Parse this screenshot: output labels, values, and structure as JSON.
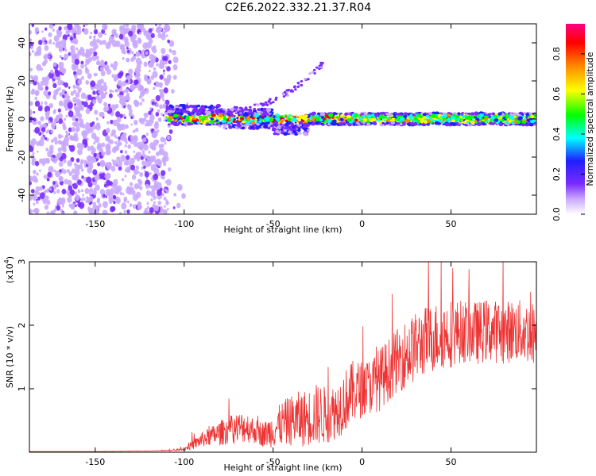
{
  "title": "C2E6.2022.332.21.37.R04",
  "spectrogram": {
    "xlabel": "Height of straight line (km)",
    "ylabel": "Frequency (Hz)",
    "xlim": [
      -187,
      98
    ],
    "ylim": [
      -50,
      50
    ],
    "xticks": [
      -150,
      -100,
      -50,
      0,
      50
    ],
    "yticks": [
      -40,
      -20,
      0,
      20,
      40
    ]
  },
  "colorbar": {
    "label": "Normalized spectral amplitude",
    "ticks": [
      0.0,
      0.2,
      0.4,
      0.6,
      0.8
    ],
    "tick_labels": [
      "0.0",
      "0.2",
      "0.4",
      "0.6",
      "0.8"
    ],
    "range": [
      0.0,
      0.95
    ],
    "colors": [
      "#ffffff",
      "#c9a8ff",
      "#7a2bff",
      "#1f1fff",
      "#00ffff",
      "#00ff00",
      "#ffff00",
      "#ff8800",
      "#ff0000",
      "#ff0080"
    ]
  },
  "chart_data": {
    "type": "line",
    "title": "C2E6.2022.332.21.37.R04",
    "xlabel": "Height of straight line (km)",
    "ylabel": "SNR (10 * v/v)",
    "y_multiplier_label": "(x10",
    "y_multiplier_exp": "4",
    "y_multiplier_close": ")",
    "xlim": [
      -187,
      98
    ],
    "ylim": [
      0,
      3
    ],
    "xticks": [
      -150,
      -100,
      -50,
      0,
      50
    ],
    "yticks": [
      1,
      2,
      3
    ],
    "series": [
      {
        "name": "SNR",
        "color": "#ee3333",
        "x": [
          -187,
          -150,
          -120,
          -105,
          -100,
          -95,
          -90,
          -85,
          -80,
          -75,
          -70,
          -65,
          -60,
          -55,
          -50,
          -45,
          -40,
          -35,
          -30,
          -25,
          -20,
          -15,
          -10,
          -5,
          0,
          5,
          10,
          15,
          20,
          25,
          30,
          35,
          40,
          45,
          50,
          55,
          60,
          65,
          70,
          75,
          80,
          85,
          90,
          95,
          98
        ],
        "y": [
          0.01,
          0.01,
          0.02,
          0.03,
          0.05,
          0.12,
          0.2,
          0.25,
          0.3,
          0.35,
          0.38,
          0.4,
          0.33,
          0.28,
          0.35,
          0.45,
          0.5,
          0.52,
          0.55,
          0.6,
          0.58,
          0.65,
          0.8,
          0.95,
          1.0,
          1.05,
          1.15,
          1.3,
          1.45,
          1.55,
          1.65,
          1.75,
          1.8,
          1.85,
          1.88,
          1.9,
          1.9,
          1.88,
          1.92,
          1.9,
          1.88,
          1.92,
          1.9,
          1.88,
          1.9
        ],
        "spread": [
          0.0,
          0.0,
          0.0,
          0.01,
          0.02,
          0.08,
          0.12,
          0.15,
          0.2,
          0.22,
          0.25,
          0.25,
          0.2,
          0.2,
          0.28,
          0.35,
          0.4,
          0.45,
          0.45,
          0.5,
          0.45,
          0.45,
          0.5,
          0.5,
          0.45,
          0.45,
          0.5,
          0.5,
          0.5,
          0.55,
          0.55,
          0.55,
          0.55,
          0.55,
          0.55,
          0.5,
          0.5,
          0.5,
          0.5,
          0.5,
          0.5,
          0.5,
          0.5,
          0.5,
          0.5
        ]
      }
    ]
  }
}
